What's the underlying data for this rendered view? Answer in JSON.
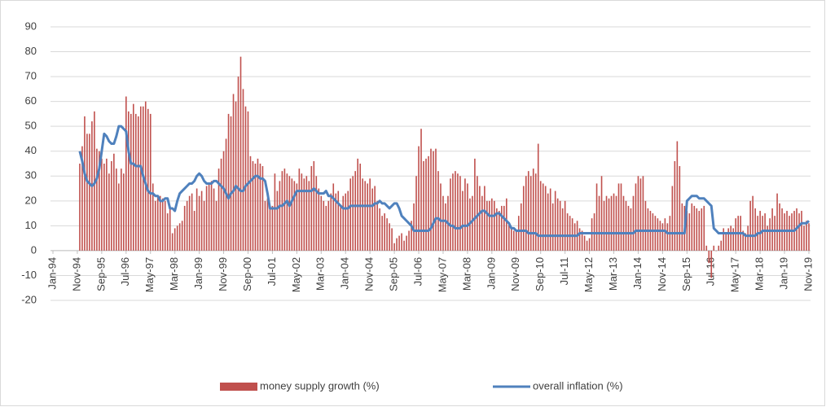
{
  "chart_data": {
    "type": "bar-line",
    "categories": [
      "Jan-94",
      null,
      null,
      null,
      null,
      null,
      null,
      null,
      null,
      null,
      "Nov-94",
      null,
      null,
      null,
      null,
      null,
      null,
      null,
      null,
      null,
      "Sep-95",
      null,
      null,
      null,
      null,
      null,
      null,
      null,
      null,
      null,
      "Jul-96",
      null,
      null,
      null,
      null,
      null,
      null,
      null,
      null,
      null,
      "May-97",
      null,
      null,
      null,
      null,
      null,
      null,
      null,
      null,
      null,
      "Mar-98",
      null,
      null,
      null,
      null,
      null,
      null,
      null,
      null,
      null,
      "Jan-99",
      null,
      null,
      null,
      null,
      null,
      null,
      null,
      null,
      null,
      "Nov-99",
      null,
      null,
      null,
      null,
      null,
      null,
      null,
      null,
      null,
      "Sep-00",
      null,
      null,
      null,
      null,
      null,
      null,
      null,
      null,
      null,
      "Jul-01",
      null,
      null,
      null,
      null,
      null,
      null,
      null,
      null,
      null,
      "May-02",
      null,
      null,
      null,
      null,
      null,
      null,
      null,
      null,
      null,
      "Mar-03",
      null,
      null,
      null,
      null,
      null,
      null,
      null,
      null,
      null,
      "Jan-04",
      null,
      null,
      null,
      null,
      null,
      null,
      null,
      null,
      null,
      "Nov-04",
      null,
      null,
      null,
      null,
      null,
      null,
      null,
      null,
      null,
      "Sep-05",
      null,
      null,
      null,
      null,
      null,
      null,
      null,
      null,
      null,
      "Jul-06",
      null,
      null,
      null,
      null,
      null,
      null,
      null,
      null,
      null,
      "May-07",
      null,
      null,
      null,
      null,
      null,
      null,
      null,
      null,
      null,
      "Mar-08",
      null,
      null,
      null,
      null,
      null,
      null,
      null,
      null,
      null,
      "Jan-09",
      null,
      null,
      null,
      null,
      null,
      null,
      null,
      null,
      null,
      "Nov-09",
      null,
      null,
      null,
      null,
      null,
      null,
      null,
      null,
      null,
      "Sep-10",
      null,
      null,
      null,
      null,
      null,
      null,
      null,
      null,
      null,
      "Jul-11",
      null,
      null,
      null,
      null,
      null,
      null,
      null,
      null,
      null,
      "May-12",
      null,
      null,
      null,
      null,
      null,
      null,
      null,
      null,
      null,
      "Mar-13",
      null,
      null,
      null,
      null,
      null,
      null,
      null,
      null,
      null,
      "Jan-14",
      null,
      null,
      null,
      null,
      null,
      null,
      null,
      null,
      null,
      "Nov-14",
      null,
      null,
      null,
      null,
      null,
      null,
      null,
      null,
      null,
      "Sep-15",
      null,
      null,
      null,
      null,
      null,
      null,
      null,
      null,
      null,
      "Jul-16",
      null,
      null,
      null,
      null,
      null,
      null,
      null,
      null,
      null,
      "May-17",
      null,
      null,
      null,
      null,
      null,
      null,
      null,
      null,
      null,
      "Mar-18",
      null,
      null,
      null,
      null,
      null,
      null,
      null,
      null,
      null,
      "Jan-19",
      null,
      null,
      null,
      null,
      null,
      null,
      null,
      null,
      null,
      "Nov-19"
    ],
    "series": [
      {
        "name": "money supply growth (%)",
        "type": "bar",
        "color": "#c0504d",
        "values": [
          null,
          null,
          null,
          null,
          null,
          null,
          null,
          null,
          null,
          null,
          null,
          35,
          42,
          54,
          47,
          47,
          52,
          56,
          41,
          40,
          37,
          35,
          37,
          31,
          36,
          39,
          33,
          27,
          33,
          31,
          62,
          56,
          55,
          59,
          55,
          54,
          58,
          58,
          60,
          57,
          55,
          27,
          20,
          22,
          22,
          21,
          20,
          15,
          17,
          7,
          9,
          10,
          11,
          12,
          18,
          20,
          22,
          23,
          16,
          25,
          22,
          24,
          20,
          26,
          27,
          28,
          25,
          20,
          33,
          37,
          40,
          45,
          55,
          54,
          63,
          60,
          70,
          78,
          65,
          58,
          56,
          38,
          36,
          35,
          37,
          35,
          34,
          20,
          21,
          17,
          18,
          31,
          24,
          28,
          32,
          33,
          31,
          30,
          29,
          28,
          27,
          33,
          31,
          29,
          30,
          28,
          34,
          36,
          30,
          25,
          22,
          20,
          18,
          20,
          23,
          27,
          23,
          24,
          18,
          22,
          23,
          24,
          29,
          30,
          32,
          37,
          35,
          29,
          28,
          27,
          29,
          25,
          26,
          20,
          17,
          14,
          15,
          13,
          11,
          9,
          3,
          5,
          6,
          7,
          4,
          6,
          8,
          12,
          19,
          30,
          42,
          49,
          36,
          37,
          38,
          41,
          40,
          41,
          32,
          27,
          22,
          19,
          22,
          29,
          31,
          32,
          31,
          30,
          24,
          29,
          27,
          21,
          22,
          37,
          30,
          26,
          22,
          26,
          20,
          20,
          21,
          20,
          17,
          16,
          18,
          18,
          21,
          11,
          9,
          8,
          8,
          14,
          19,
          26,
          30,
          32,
          30,
          33,
          31,
          43,
          28,
          27,
          26,
          23,
          25,
          19,
          24,
          21,
          20,
          17,
          20,
          15,
          14,
          13,
          11,
          12,
          9,
          8,
          6,
          4,
          5,
          13,
          15,
          27,
          22,
          30,
          20,
          22,
          21,
          22,
          23,
          22,
          27,
          27,
          22,
          20,
          18,
          17,
          22,
          27,
          30,
          29,
          30,
          20,
          17,
          16,
          15,
          14,
          13,
          12,
          11,
          13,
          11,
          14,
          26,
          36,
          44,
          34,
          19,
          18,
          16,
          15,
          19,
          18,
          17,
          16,
          17,
          18,
          2,
          -5,
          -11,
          2,
          0,
          2,
          4,
          9,
          7,
          9,
          10,
          9,
          13,
          14,
          14,
          8,
          7,
          10,
          20,
          22,
          17,
          14,
          16,
          14,
          15,
          10,
          13,
          17,
          14,
          23,
          19,
          17,
          15,
          16,
          14,
          15,
          16,
          17,
          15,
          16,
          10,
          12,
          11
        ]
      },
      {
        "name": "overall inflation (%)",
        "type": "line",
        "color": "#4f81bd",
        "values": [
          null,
          null,
          null,
          null,
          null,
          null,
          null,
          null,
          null,
          null,
          null,
          40,
          36,
          31,
          28,
          27,
          26,
          27,
          29,
          33,
          40,
          47,
          46,
          44,
          43,
          43,
          46,
          50,
          50,
          49,
          48,
          40,
          35,
          35,
          34,
          34,
          34,
          30,
          27,
          24,
          23,
          23,
          22,
          22,
          20,
          20,
          21,
          21,
          17,
          17,
          16,
          20,
          23,
          24,
          25,
          26,
          27,
          27,
          28,
          30,
          31,
          30,
          28,
          27,
          27,
          27,
          28,
          28,
          27,
          26,
          25,
          23,
          21,
          23,
          24,
          26,
          25,
          24,
          24,
          26,
          27,
          28,
          29,
          30,
          30,
          29,
          29,
          28,
          23,
          17,
          17,
          17,
          17,
          18,
          18,
          19,
          20,
          18,
          20,
          22,
          24,
          24,
          24,
          24,
          24,
          24,
          24,
          25,
          24,
          23,
          23,
          23,
          24,
          22,
          22,
          21,
          20,
          19,
          18,
          17,
          17,
          17,
          18,
          18,
          18,
          18,
          18,
          18,
          18,
          18,
          18,
          18,
          19,
          19,
          20,
          19,
          19,
          18,
          17,
          18,
          19,
          19,
          17,
          14,
          13,
          12,
          11,
          10,
          8,
          8,
          8,
          8,
          8,
          8,
          8,
          9,
          11,
          13,
          13,
          12,
          12,
          12,
          11,
          10,
          10,
          9,
          9,
          9,
          10,
          10,
          10,
          11,
          12,
          13,
          14,
          15,
          16,
          16,
          15,
          14,
          14,
          14,
          15,
          15,
          14,
          13,
          12,
          11,
          9,
          9,
          8,
          8,
          8,
          8,
          8,
          7,
          7,
          7,
          7,
          6,
          6,
          6,
          6,
          6,
          6,
          6,
          6,
          6,
          6,
          6,
          6,
          6,
          6,
          6,
          6,
          6,
          7,
          7,
          7,
          7,
          7,
          7,
          7,
          7,
          7,
          7,
          7,
          7,
          7,
          7,
          7,
          7,
          7,
          7,
          7,
          7,
          7,
          7,
          7,
          8,
          8,
          8,
          8,
          8,
          8,
          8,
          8,
          8,
          8,
          8,
          8,
          8,
          7,
          7,
          7,
          7,
          7,
          7,
          7,
          7,
          20,
          21,
          22,
          22,
          22,
          21,
          21,
          21,
          20,
          19,
          18,
          9,
          8,
          7,
          7,
          7,
          7,
          7,
          7,
          7,
          7,
          7,
          7,
          7,
          6,
          6,
          6,
          6,
          6,
          7,
          7,
          8,
          8,
          8,
          8,
          8,
          8,
          8,
          8,
          8,
          8,
          8,
          8,
          8,
          8,
          9,
          10,
          11,
          11,
          11,
          12
        ]
      }
    ],
    "ylim": [
      -20,
      90
    ],
    "yticks": [
      -20,
      -10,
      0,
      10,
      20,
      30,
      40,
      50,
      60,
      70,
      80,
      90
    ],
    "grid": true,
    "legend": "bottom"
  }
}
